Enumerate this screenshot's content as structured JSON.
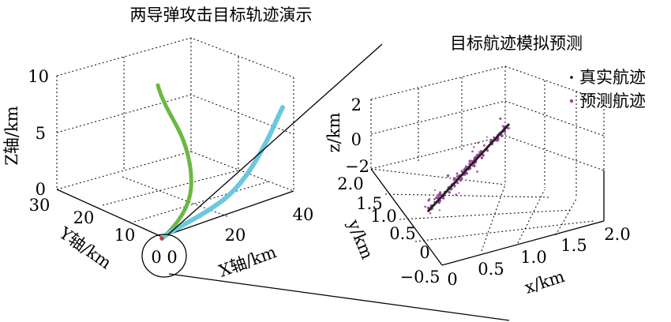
{
  "chart_data": [
    {
      "type": "line",
      "title": "两导弹攻击目标轨迹演示",
      "xlabel": "X轴/km",
      "ylabel": "Y轴/km",
      "zlabel": "Z轴/km",
      "xlim": [
        0,
        40
      ],
      "ylim": [
        0,
        30
      ],
      "zlim": [
        0,
        10
      ],
      "x_ticks": [
        "0",
        "20",
        "40"
      ],
      "y_ticks": [
        "0",
        "10",
        "20",
        "30"
      ],
      "z_ticks": [
        "0",
        "5",
        "10"
      ],
      "grid": true,
      "colors": {
        "missile_green": "#6bb844",
        "missile_cyan": "#6cc8dc",
        "target": "#e03030"
      },
      "series": [
        {
          "color": "#6bb844",
          "x": [
            0,
            1,
            2,
            3,
            4,
            5,
            6,
            7,
            7.5,
            8
          ],
          "y": [
            0,
            1,
            2,
            3.5,
            5,
            7,
            9,
            11.5,
            13,
            14
          ],
          "z": [
            0,
            1.2,
            2.5,
            3.8,
            5,
            6.2,
            7.3,
            8.2,
            8.8,
            9.3
          ]
        },
        {
          "color": "#6cc8dc",
          "x": [
            0,
            5,
            10,
            15,
            20,
            24,
            28,
            31,
            34,
            36
          ],
          "y": [
            0,
            0.5,
            1.5,
            2.5,
            3,
            3,
            2.5,
            2,
            1.5,
            1
          ],
          "z": [
            0,
            0.6,
            1.3,
            2.2,
            3.2,
            4.2,
            5.3,
            6.2,
            7.1,
            7.8
          ]
        }
      ]
    },
    {
      "type": "scatter",
      "title": "目标航迹模拟预测",
      "xlabel": "x/km",
      "ylabel": "y/km",
      "zlabel": "z/km",
      "xlim": [
        0,
        2.0
      ],
      "ylim": [
        -0.5,
        2.0
      ],
      "zlim": [
        -2,
        2
      ],
      "x_ticks": [
        "0",
        "0.5",
        "1.0",
        "1.5",
        "2.0"
      ],
      "y_ticks": [
        "−0.5",
        "0",
        "0.5",
        "1.0",
        "1.5",
        "2.0"
      ],
      "z_ticks": [
        "−2",
        "0",
        "2"
      ],
      "grid": true,
      "legend_position": "top-right",
      "series": [
        {
          "name": "真实航迹",
          "color": "#000000",
          "marker": "·"
        },
        {
          "name": "预测航迹",
          "color": "#a0439e",
          "marker": "·"
        }
      ]
    }
  ]
}
